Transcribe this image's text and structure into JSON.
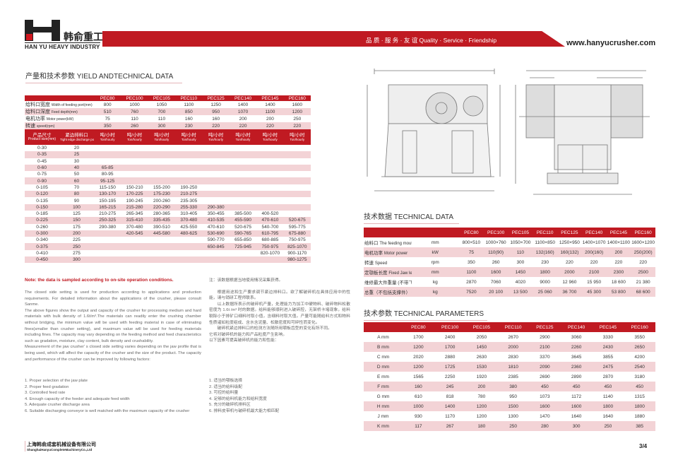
{
  "header": {
    "logo_cn": "韩俞重工",
    "logo_en": "HAN YU HEAVY INDUSTRY",
    "slogan": "品 质 · 服 务 · 友 谊   Quality · Service · Friendship",
    "website": "www.hanyucrusher.com",
    "brand_color": "#c01a22"
  },
  "yield": {
    "title": "产量和技术参数 YIELD ANDTECHNICAL DATA",
    "models": [
      "PEC80",
      "PEC100",
      "PEC105",
      "PEC110",
      "PEC125",
      "PEC140",
      "PEC145",
      "PEC160"
    ],
    "specs": [
      {
        "cn": "给料口宽度",
        "en": "Width of feeding port(mm)",
        "values": [
          "800",
          "1000",
          "1050",
          "1100",
          "1250",
          "1400",
          "1400",
          "1600"
        ]
      },
      {
        "cn": "给料口深度",
        "en": "Feed depth(mm)",
        "values": [
          "510",
          "760",
          "700",
          "850",
          "950",
          "1070",
          "1100",
          "1200"
        ]
      },
      {
        "cn": "电机功率",
        "en": "Motor power(kW)",
        "values": [
          "75",
          "110",
          "110",
          "160",
          "160",
          "200",
          "200",
          "250"
        ]
      },
      {
        "cn": "转速",
        "en": "speed(rpm)",
        "values": [
          "350",
          "260",
          "300",
          "230",
          "220",
          "220",
          "220",
          "220"
        ]
      }
    ],
    "col_headers": {
      "size_cn": "产品尺寸",
      "size_en": "Product size(mm)",
      "port_cn": "紧边排料口",
      "port_en": "Tight edge discharge port/Product size(mm)",
      "unit_cn": "吨/小时",
      "unit_en": "Ton/hourly"
    },
    "rows": [
      [
        "0-30",
        "20",
        "",
        "",
        "",
        "",
        "",
        "",
        "",
        ""
      ],
      [
        "0-35",
        "25",
        "",
        "",
        "",
        "",
        "",
        "",
        "",
        ""
      ],
      [
        "0-45",
        "30",
        "",
        "",
        "",
        "",
        "",
        "",
        "",
        ""
      ],
      [
        "0-60",
        "40",
        "65-85",
        "",
        "",
        "",
        "",
        "",
        "",
        ""
      ],
      [
        "0-75",
        "50",
        "80-95",
        "",
        "",
        "",
        "",
        "",
        "",
        ""
      ],
      [
        "0-90",
        "60",
        "95-125",
        "",
        "",
        "",
        "",
        "",
        "",
        ""
      ],
      [
        "0-105",
        "70",
        "115-150",
        "150-210",
        "155-200",
        "190-250",
        "",
        "",
        "",
        ""
      ],
      [
        "0-120",
        "80",
        "130-170",
        "170-225",
        "175-230",
        "210-275",
        "",
        "",
        "",
        ""
      ],
      [
        "0-135",
        "90",
        "150-195",
        "190-245",
        "200-260",
        "235-305",
        "",
        "",
        "",
        ""
      ],
      [
        "0-150",
        "100",
        "165-215",
        "215-280",
        "220-290",
        "255-330",
        "290-380",
        "",
        "",
        ""
      ],
      [
        "0-185",
        "125",
        "210-275",
        "265-345",
        "280-365",
        "310-405",
        "350-455",
        "385-500",
        "400-520",
        ""
      ],
      [
        "0-225",
        "150",
        "250-325",
        "315-410",
        "335-435",
        "370-480",
        "410-535",
        "455-590",
        "470-610",
        "520-675"
      ],
      [
        "0-260",
        "175",
        "290-380",
        "370-480",
        "390-510",
        "425-550",
        "470-610",
        "520-675",
        "540-700",
        "595-775"
      ],
      [
        "0-300",
        "200",
        "",
        "420-545",
        "445-580",
        "480-625",
        "530-690",
        "590-765",
        "610-795",
        "675-880"
      ],
      [
        "0-340",
        "225",
        "",
        "",
        "",
        "",
        "590-770",
        "655-850",
        "680-885",
        "750-975"
      ],
      [
        "0-375",
        "250",
        "",
        "",
        "",
        "",
        "650-845",
        "725-945",
        "750-975",
        "825-1070"
      ],
      [
        "0-410",
        "275",
        "",
        "",
        "",
        "",
        "",
        "",
        "820-1070",
        "900-1170"
      ],
      [
        "0-450",
        "300",
        "",
        "",
        "",
        "",
        "",
        "",
        "",
        "980-1275"
      ]
    ]
  },
  "notes": {
    "title": "Note: the data is sampled according to on-site operation conditions.",
    "en_paragraphs": [
      "The closed side setting is used for production according to applications and production requirements. For detailed information about the applications of the crusher, please consult Sanme.",
      "The above figures show the output and capacity of the crusher for processing medium and hard materials with bulk density of 1.6t/m³.The materials can readily enter the crushing chamber without bridging, the minimum value will be used with feeding material in case of  eliminating fines(smaller than crusher setting), and maximum value will be used for feeding materials including fines. The capacity may vary depending on the feeding method and feed characteristics such as gradation, moisture, clay content, bulk density and crushability.",
      "Measurement of the jaw crusher' s closed side setting varies depending on the jaw profile that is being used, which will affect the capacity of the crusher and the size of the product. The capacity and performance of the crusher can be improved by following factors:"
    ],
    "cn_title": "注：该数据根据当地使用情况采集获得。",
    "cn_paragraphs": [
      "根据用途和生产要求调节紧边排料口。欲了解破碎机在具体应用中的性能，请与销研工程师联系。",
      "以上数据所表示的破碎机产量，处理能力为加工中硬物料、破碎物料松散密度为 1.6t /m³ 时的数据。给料能够顺利进入破碎腔，无架桥卡堵现象，给料剔除小于排矿口细料时取小值，含细料时取大值。产量可能随给料方式和物料性质诸如粒度组成、含水含泥量、松散密度和可碎性而变化。",
      "破碎机紧边排料口的检测方法随所用颚板齿型的变化有所不同。",
      "它将对破碎机的能力和产品粒度产生影响。",
      "以下因素可提高破碎机的能力和性能："
    ],
    "en_list": [
      "1. Proper selection of the jaw plate",
      "2. Proper feed gradation",
      "3. Controlled feed rate",
      "4. Enough capacity of the feeder and adequate feed width",
      "5. Adequate crusher discharge area",
      "6. Suitable discharging conveyor is well matched with the maximum capacity of the crusher"
    ],
    "cn_list": [
      "1. 适当的颚板选择",
      "2. 适当的给料级配",
      "3. 可控的给料量",
      "4. 足够的给料机能力和给料宽度",
      "5. 充分的破碎机排料区",
      "6. 排料皮带机与破碎机最大能力相匹配"
    ]
  },
  "tech_data": {
    "title": "技术数据 TECHNICAL DATA",
    "models": [
      "PEC80",
      "PEC100",
      "PEC105",
      "PEC110",
      "PEC125",
      "PEC140",
      "PEC145",
      "PEC160"
    ],
    "rows": [
      {
        "cn": "给料口",
        "en": "The feeding mouth",
        "unit": "mm",
        "values": [
          "800×510",
          "1000×760",
          "1050×700",
          "1100×850",
          "1250×950",
          "1400×1070",
          "1400×1100",
          "1600×1200"
        ]
      },
      {
        "cn": "电机功率",
        "en": "Motor power",
        "unit": "kW",
        "values": [
          "75",
          "110(90)",
          "110",
          "132(160)",
          "160(132)",
          "200(160)",
          "200",
          "250(200)"
        ]
      },
      {
        "cn": "转速",
        "en": "Speed",
        "unit": "rpm",
        "values": [
          "350",
          "260",
          "300",
          "230",
          "220",
          "220",
          "220",
          "220"
        ]
      },
      {
        "cn": "定颚板长度",
        "en": "Fixed Jaw length",
        "unit": "mm",
        "values": [
          "1100",
          "1600",
          "1450",
          "1800",
          "2000",
          "2100",
          "2300",
          "2500"
        ]
      },
      {
        "cn": "维修最大件重量 (不带飞轮动颚总成)",
        "en": "Maintenance maximum weight (without the flywheel jaw assembly)",
        "unit": "kg",
        "values": [
          "2870",
          "7060",
          "4020",
          "9000",
          "12 960",
          "15 950",
          "18 600",
          "21 380"
        ]
      },
      {
        "cn": "总重（不包括支撑件）",
        "en": "Total weight (excluding supporting parts)",
        "unit": "kg",
        "values": [
          "7520",
          "20 100",
          "13 500",
          "25 060",
          "36 700",
          "45 300",
          "53 800",
          "68 600"
        ]
      }
    ]
  },
  "tech_params": {
    "title": "技术参数 TECHNICAL PARAMETERS",
    "models": [
      "PEC80",
      "PEC100",
      "PEC105",
      "PEC110",
      "PEC125",
      "PEC140",
      "PEC145",
      "PEC160"
    ],
    "rows": [
      {
        "label": "A mm",
        "values": [
          "1700",
          "2400",
          "2050",
          "2670",
          "2900",
          "3060",
          "3330",
          "3550"
        ]
      },
      {
        "label": "B mm",
        "values": [
          "1200",
          "1700",
          "1450",
          "2000",
          "2100",
          "2260",
          "2430",
          "2650"
        ]
      },
      {
        "label": "C mm",
        "values": [
          "2020",
          "2880",
          "2630",
          "2830",
          "3370",
          "3645",
          "3855",
          "4200"
        ]
      },
      {
        "label": "D mm",
        "values": [
          "1200",
          "1725",
          "1530",
          "1810",
          "2090",
          "2360",
          "2475",
          "2540"
        ]
      },
      {
        "label": "E mm",
        "values": [
          "1565",
          "2250",
          "1920",
          "2385",
          "2690",
          "2890",
          "2870",
          "3180"
        ]
      },
      {
        "label": "F mm",
        "values": [
          "160",
          "245",
          "200",
          "380",
          "450",
          "450",
          "450",
          "450"
        ]
      },
      {
        "label": "G mm",
        "values": [
          "610",
          "818",
          "780",
          "950",
          "1073",
          "1172",
          "1140",
          "1315"
        ]
      },
      {
        "label": "H mm",
        "values": [
          "1000",
          "1400",
          "1200",
          "1500",
          "1600",
          "1600",
          "1800",
          "1800"
        ]
      },
      {
        "label": "J mm",
        "values": [
          "930",
          "1170",
          "1200",
          "1300",
          "1470",
          "1640",
          "1640",
          "1880"
        ]
      },
      {
        "label": "K mm",
        "values": [
          "117",
          "267",
          "180",
          "250",
          "280",
          "300",
          "250",
          "385"
        ]
      }
    ]
  },
  "footer": {
    "company_cn": "上海韩俞成套机械设备有限公司",
    "company_en": "ShanghaiHanyuCompleteMachineryCo.,Ltd",
    "page": "3/4"
  }
}
